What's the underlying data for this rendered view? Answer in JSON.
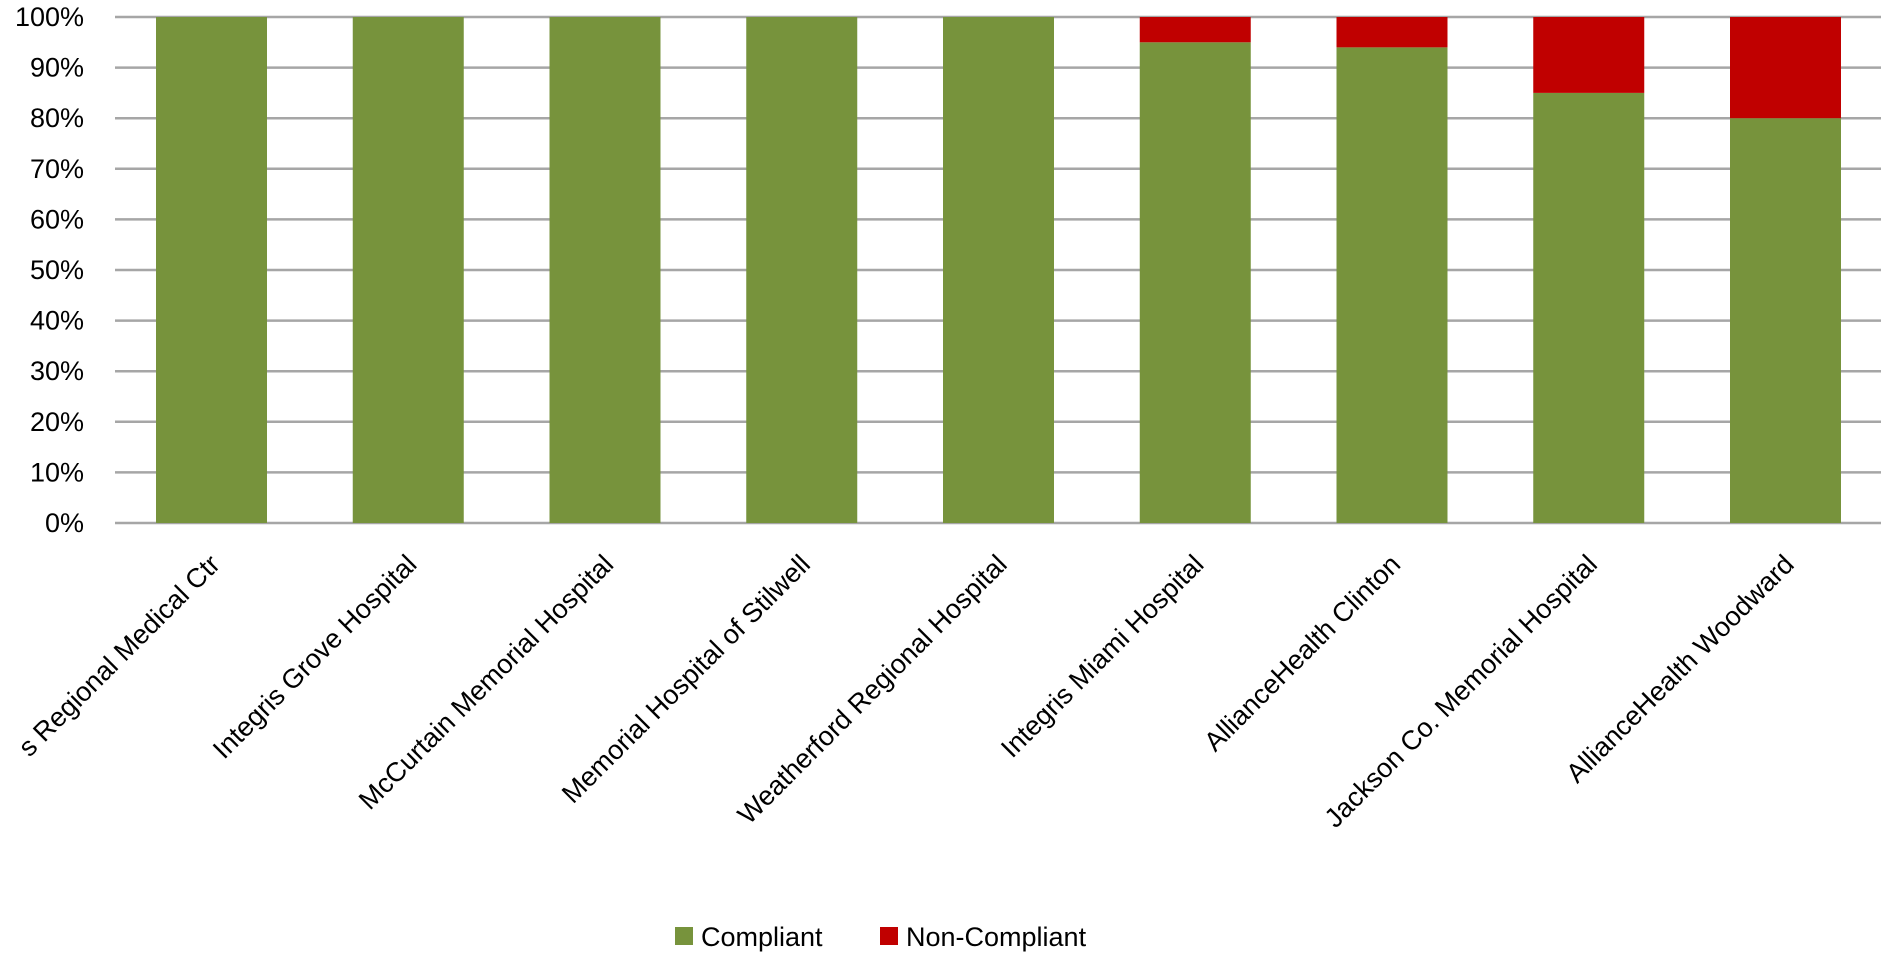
{
  "chart_data": {
    "type": "bar",
    "stacked": true,
    "categories": [
      "Mercy Hospital Ardmore / Hillcrest Regional Medical Ctr",
      "Integris Grove Hospital",
      "McCurtain Memorial Hospital",
      "Memorial Hospital of Stilwell",
      "Weatherford Regional Hospital",
      "Integris Miami Hospital",
      "AllianceHealth Clinton",
      "Jackson Co. Memorial Hospital",
      "AllianceHealth Woodward"
    ],
    "visible_category_text": [
      "s Regional Medical Ctr",
      "Integris Grove Hospital",
      "McCurtain Memorial Hospital",
      "Memorial Hospital of Stilwell",
      "Weatherford Regional Hospital",
      "Integris Miami Hospital",
      "AllianceHealth Clinton",
      "Jackson Co. Memorial Hospital",
      "AllianceHealth Woodward"
    ],
    "series": [
      {
        "name": "Compliant",
        "color": "#77933C",
        "values": [
          100,
          100,
          100,
          100,
          100,
          95,
          94,
          85,
          80
        ]
      },
      {
        "name": "Non-Compliant",
        "color": "#C00000",
        "values": [
          0,
          0,
          0,
          0,
          0,
          5,
          6,
          15,
          20
        ]
      }
    ],
    "ylim": [
      0,
      100
    ],
    "yticks": [
      "0%",
      "10%",
      "20%",
      "30%",
      "40%",
      "50%",
      "60%",
      "70%",
      "80%",
      "90%",
      "100%"
    ],
    "grid": true,
    "gridColor": "#A6A6A6",
    "legend_position": "bottom",
    "title": "",
    "xlabel": "",
    "ylabel": ""
  }
}
